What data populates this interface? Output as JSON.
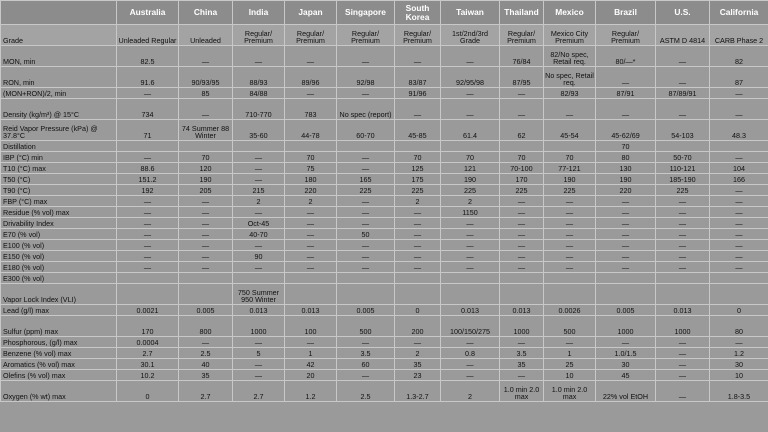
{
  "header": {
    "label": "",
    "countries": [
      "Australia",
      "China",
      "India",
      "Japan",
      "Singapore",
      "South Korea",
      "Taiwan",
      "Thailand",
      "Mexico",
      "Brazil",
      "U.S.",
      "California"
    ]
  },
  "rows": [
    {
      "label": "Grade",
      "h": 21,
      "cells": [
        "Unleaded Regular",
        "Unleaded",
        "Regular/ Premium",
        "Regular/ Premium",
        "Regular/ Premium",
        "Regular/ Premium",
        "1st/2nd/3rd Grade",
        "Regular/ Premium",
        "Mexico City Premium",
        "Regular/ Premium",
        "ASTM D 4814",
        "CARB Phase 2"
      ]
    },
    {
      "label": "MON, min",
      "h": 21,
      "cells": [
        "82.5",
        "—",
        "—",
        "—",
        "—",
        "—",
        "—",
        "76/84",
        "82/No spec, Retail req.",
        "80/—*",
        "—",
        "82"
      ]
    },
    {
      "label": "RON, min",
      "h": 21,
      "cells": [
        "91.6",
        "90/93/95",
        "88/93",
        "89/96",
        "92/98",
        "83/87",
        "92/95/98",
        "87/95",
        "No spec, Retail req.",
        "—",
        "—",
        "87"
      ]
    },
    {
      "label": "(MON+RON)/2, min",
      "h": 11,
      "cells": [
        "—",
        "85",
        "84/88",
        "—",
        "—",
        "91/96",
        "—",
        "—",
        "82/93",
        "87/91",
        "87/89/91",
        "—"
      ]
    },
    {
      "label": "Density (kg/m³) @ 15°C",
      "h": 21,
      "cells": [
        "734",
        "—",
        "710-770",
        "783",
        "No spec (report)",
        "—",
        "—",
        "—",
        "—",
        "—",
        "—",
        "—"
      ]
    },
    {
      "label": "Reid Vapor Pressure (kPa) @ 37.8°C",
      "h": 21,
      "cells": [
        "71",
        "74 Summer 88 Winter",
        "35-60",
        "44-78",
        "60-70",
        "45-85",
        "61.4",
        "62",
        "45-54",
        "45-62/69",
        "54-103",
        "48.3"
      ]
    },
    {
      "label": "Distillation",
      "h": 11,
      "cells": [
        "",
        "",
        "",
        "",
        "",
        "",
        "",
        "",
        "",
        "70",
        "",
        ""
      ]
    },
    {
      "label": "IBP (°C) min",
      "h": 11,
      "cells": [
        "—",
        "70",
        "—",
        "70",
        "—",
        "70",
        "70",
        "70",
        "70",
        "80",
        "50-70",
        "—"
      ]
    },
    {
      "label": "T10 (°C) max",
      "h": 11,
      "cells": [
        "88.6",
        "120",
        "—",
        "75",
        "—",
        "125",
        "121",
        "70-100",
        "77-121",
        "130",
        "110-121",
        "104"
      ]
    },
    {
      "label": "T50 (°C)",
      "h": 11,
      "cells": [
        "151.2",
        "190",
        "—",
        "180",
        "165",
        "175",
        "190",
        "170",
        "190",
        "190",
        "185-190",
        "166"
      ]
    },
    {
      "label": "T90 (°C)",
      "h": 11,
      "cells": [
        "192",
        "205",
        "215",
        "220",
        "225",
        "225",
        "225",
        "225",
        "225",
        "220",
        "225",
        "—"
      ]
    },
    {
      "label": "FBP (°C) max",
      "h": 11,
      "cells": [
        "—",
        "—",
        "2",
        "2",
        "—",
        "2",
        "2",
        "—",
        "—",
        "—",
        "—",
        "—"
      ]
    },
    {
      "label": "Residue (% vol) max",
      "h": 11,
      "cells": [
        "—",
        "—",
        "—",
        "—",
        "—",
        "—",
        "1150",
        "—",
        "—",
        "—",
        "—",
        "—"
      ]
    },
    {
      "label": "Drivability Index",
      "h": 11,
      "cells": [
        "—",
        "—",
        "Oct-45",
        "—",
        "—",
        "—",
        "—",
        "—",
        "—",
        "—",
        "—",
        "—"
      ]
    },
    {
      "label": "E70 (% vol)",
      "h": 11,
      "cells": [
        "—",
        "—",
        "40-70",
        "—",
        "50",
        "—",
        "—",
        "—",
        "—",
        "—",
        "—",
        "—"
      ]
    },
    {
      "label": "E100 (% vol)",
      "h": 11,
      "cells": [
        "—",
        "—",
        "—",
        "—",
        "—",
        "—",
        "—",
        "—",
        "—",
        "—",
        "—",
        "—"
      ]
    },
    {
      "label": "E150 (% vol)",
      "h": 11,
      "cells": [
        "—",
        "—",
        "90",
        "—",
        "—",
        "—",
        "—",
        "—",
        "—",
        "—",
        "—",
        "—"
      ]
    },
    {
      "label": "E180 (% vol)",
      "h": 11,
      "cells": [
        "—",
        "—",
        "—",
        "—",
        "—",
        "—",
        "—",
        "—",
        "—",
        "—",
        "—",
        "—"
      ]
    },
    {
      "label": "E300 (% vol)",
      "h": 11,
      "cells": [
        "",
        "",
        "",
        "",
        "",
        "",
        "",
        "",
        "",
        "",
        "",
        ""
      ]
    },
    {
      "label": "Vapor Lock Index (VLI)",
      "h": 21,
      "cells": [
        "",
        "",
        "750 Summer 950 Winter",
        "",
        "",
        "",
        "",
        "",
        "",
        "",
        "",
        ""
      ]
    },
    {
      "label": "Lead (g/l) max",
      "h": 11,
      "cells": [
        "0.0021",
        "0.005",
        "0.013",
        "0.013",
        "0.005",
        "0",
        "0.013",
        "0.013",
        "0.0026",
        "0.005",
        "0.013",
        "0"
      ]
    },
    {
      "label": "Sulfur (ppm) max",
      "h": 21,
      "cells": [
        "170",
        "800",
        "1000",
        "100",
        "500",
        "200",
        "100/150/275",
        "1000",
        "500",
        "1000",
        "1000",
        "80"
      ]
    },
    {
      "label": "Phosphorous, (g/l) max",
      "h": 11,
      "cells": [
        "0.0004",
        "—",
        "—",
        "—",
        "—",
        "—",
        "—",
        "—",
        "—",
        "—",
        "—",
        "—"
      ]
    },
    {
      "label": "Benzene (% vol) max",
      "h": 11,
      "cells": [
        "2.7",
        "2.5",
        "5",
        "1",
        "3.5",
        "2",
        "0.8",
        "3.5",
        "1",
        "1.0/1.5",
        "—",
        "1.2"
      ]
    },
    {
      "label": "Aromatics (% vol) max",
      "h": 11,
      "cells": [
        "30.1",
        "40",
        "—",
        "42",
        "60",
        "35",
        "—",
        "35",
        "25",
        "30",
        "—",
        "30"
      ]
    },
    {
      "label": "Olefins (% vol) max",
      "h": 11,
      "cells": [
        "10.2",
        "35",
        "—",
        "20",
        "—",
        "23",
        "—",
        "—",
        "10",
        "45",
        "—",
        "10"
      ]
    },
    {
      "label": "Oxygen (% wt) max",
      "h": 21,
      "cells": [
        "0",
        "2.7",
        "2.7",
        "1.2",
        "2.5",
        "1.3-2.7",
        "2",
        "1.0 min 2.0 max",
        "1.0 min 2.0 max",
        "22% vol EtOH",
        "—",
        "1.8-3.5"
      ]
    }
  ]
}
